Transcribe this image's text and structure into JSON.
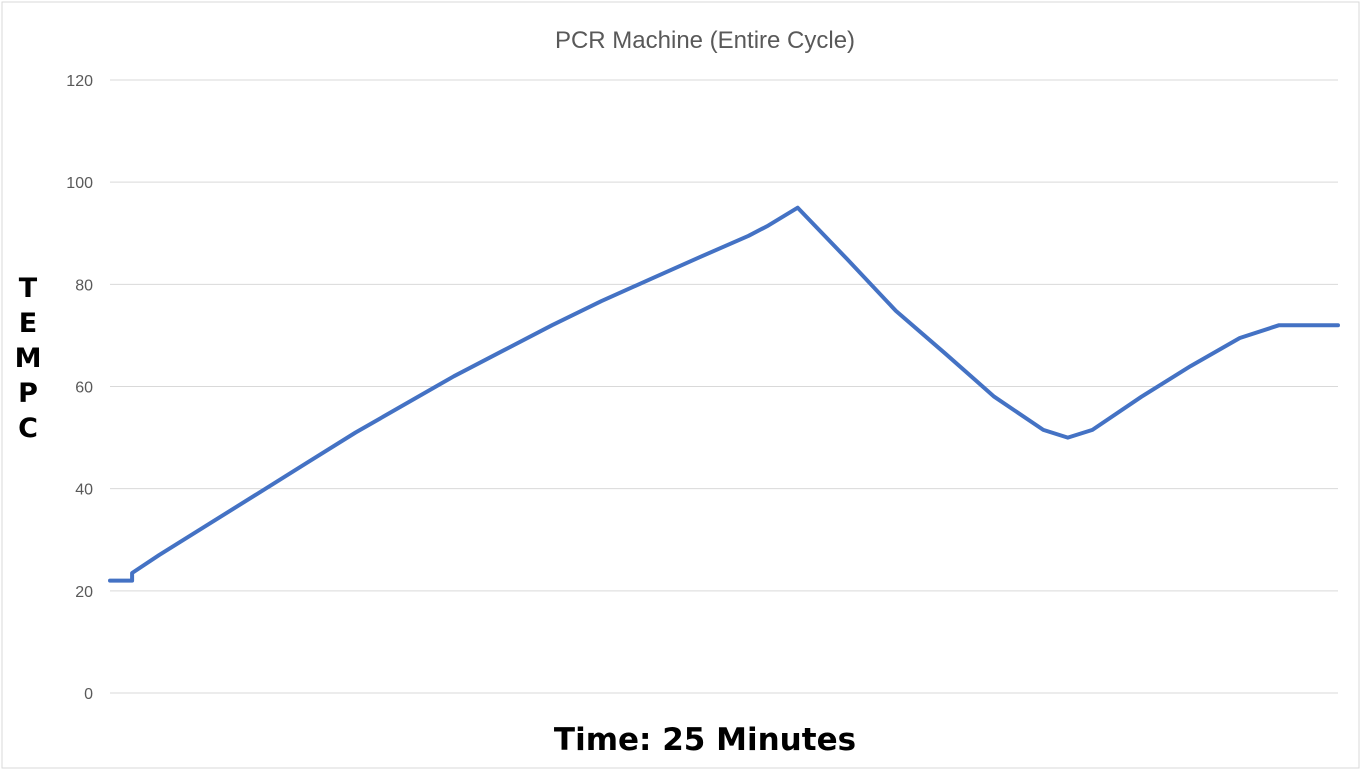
{
  "chart_data": {
    "type": "line",
    "title": "PCR Machine (Entire Cycle)",
    "xlabel": "Time: 25 Minutes",
    "ylabel": "TEMP C",
    "ylabel_letters": [
      "T",
      "E",
      "M",
      "P",
      "C"
    ],
    "ylim": [
      0,
      120
    ],
    "xlim": [
      0,
      25
    ],
    "yticks": [
      "0",
      "20",
      "40",
      "60",
      "80",
      "100",
      "120"
    ],
    "grid": true,
    "legend": "none",
    "series": [
      {
        "color": "#4472C4",
        "x": [
          0,
          0.45,
          0.45,
          1,
          2,
          3,
          4,
          5,
          6,
          7,
          8,
          9,
          10,
          11,
          12,
          13,
          13.4,
          14,
          15,
          16,
          17,
          18,
          19,
          19.5,
          20,
          21,
          22,
          23,
          23.8,
          25
        ],
        "y": [
          22,
          22,
          23.5,
          27,
          33,
          39,
          45,
          51,
          56.5,
          62,
          67,
          72,
          76.7,
          81,
          85.3,
          89.5,
          91.5,
          95,
          85,
          74.8,
          66.5,
          58,
          51.5,
          50,
          51.5,
          58,
          64,
          69.5,
          72,
          72
        ]
      }
    ]
  }
}
